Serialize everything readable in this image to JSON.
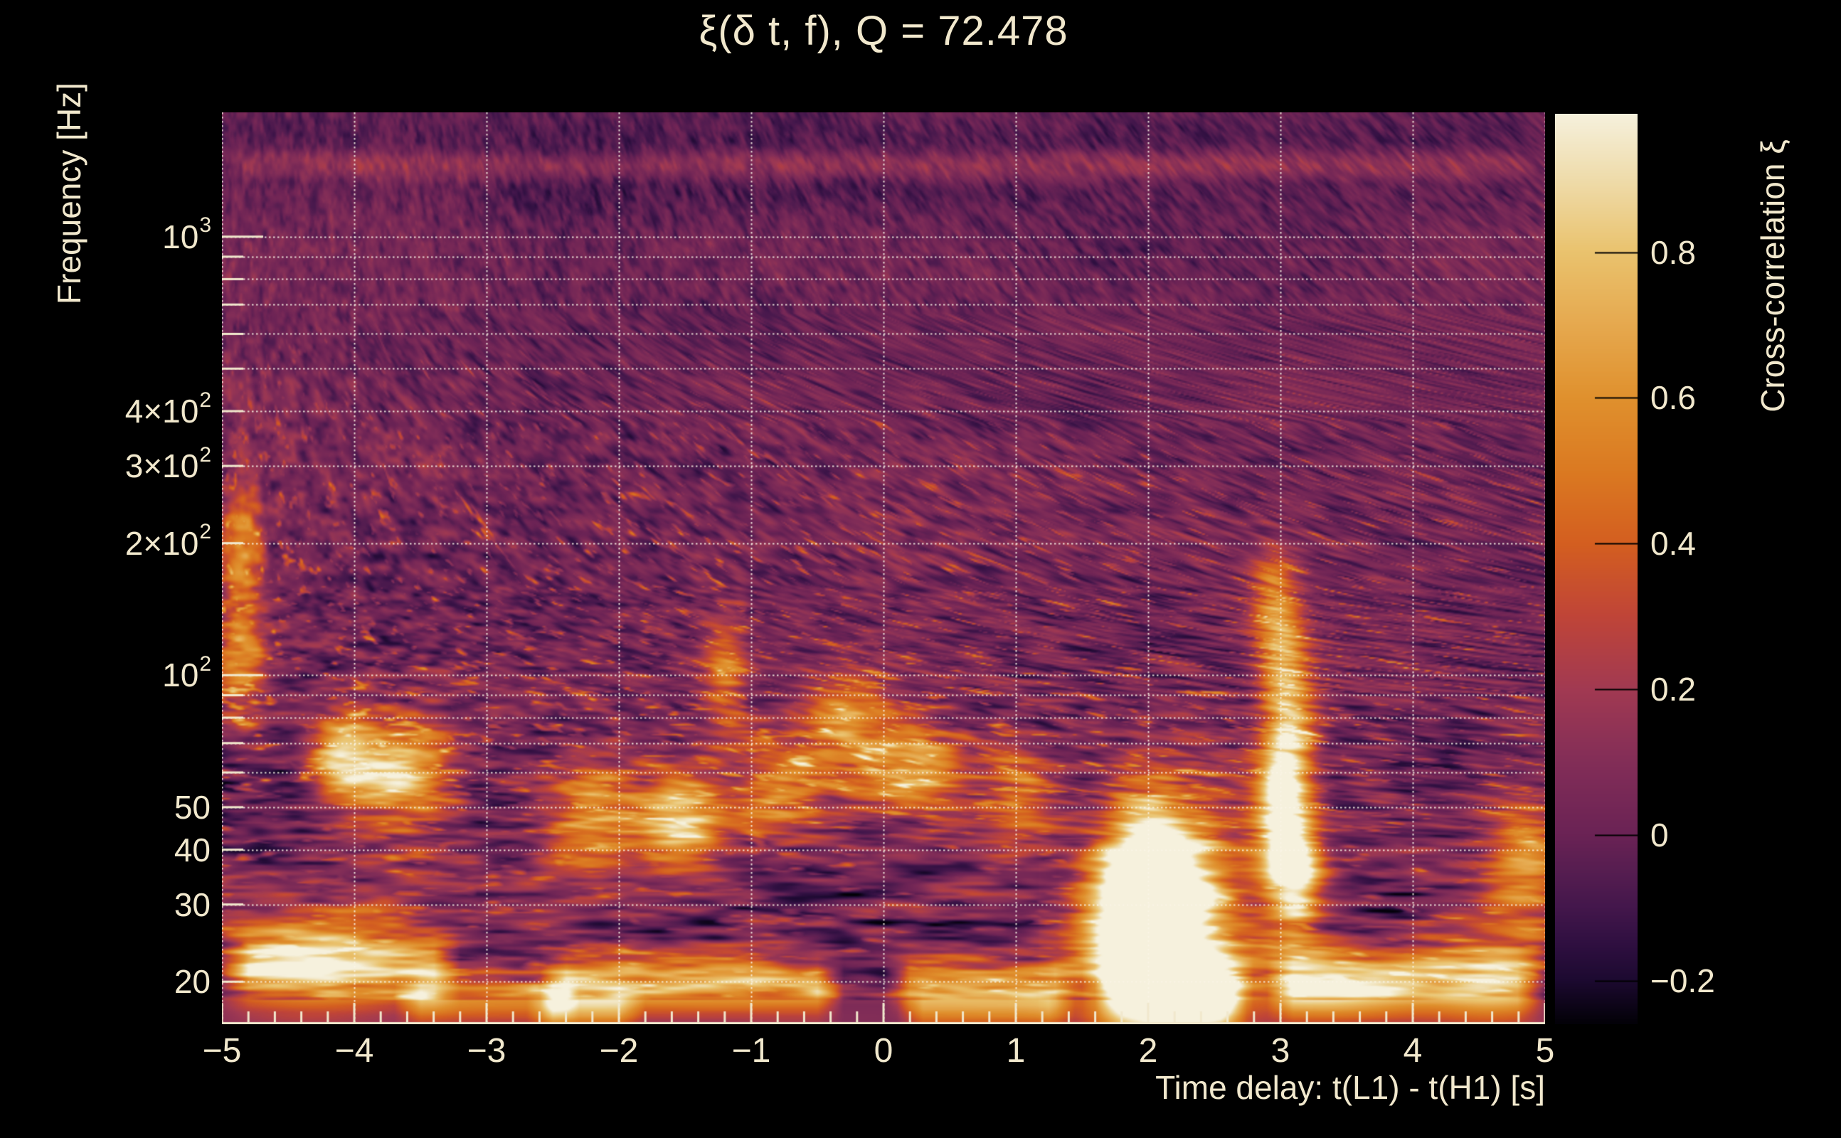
{
  "chart_data": {
    "type": "heatmap",
    "title": "ξ(δ t, f), Q = 72.478",
    "q_value": 72.478,
    "xlabel": "Time delay: t(L1) - t(H1) [s]",
    "ylabel": "Frequency [Hz]",
    "colorbar_label": "Cross-correlation ξ",
    "x_range": [
      -5,
      5
    ],
    "x_ticks": [
      -5,
      -4,
      -3,
      -2,
      -1,
      0,
      1,
      2,
      3,
      4,
      5
    ],
    "x_minor_step": 0.2,
    "y_scale": "log",
    "y_range_hz": [
      16,
      1920
    ],
    "y_ticks": [
      {
        "f": 1000,
        "label": "10",
        "sup": "3"
      },
      {
        "f": 400,
        "label": "4×10",
        "sup": "2"
      },
      {
        "f": 300,
        "label": "3×10",
        "sup": "2"
      },
      {
        "f": 200,
        "label": "2×10",
        "sup": "2"
      },
      {
        "f": 100,
        "label": "10",
        "sup": "2"
      },
      {
        "f": 50,
        "label": "50"
      },
      {
        "f": 40,
        "label": "40"
      },
      {
        "f": 30,
        "label": "30"
      },
      {
        "f": 20,
        "label": "20"
      }
    ],
    "y_minor_ticks_hz": [
      20,
      30,
      40,
      50,
      60,
      70,
      80,
      90,
      200,
      300,
      400,
      500,
      600,
      700,
      800,
      900
    ],
    "y_major_ticks_hz": [
      100,
      1000
    ],
    "grid_freqs_hz": [
      20,
      30,
      40,
      50,
      60,
      70,
      80,
      90,
      100,
      200,
      300,
      400,
      500,
      600,
      700,
      800,
      900,
      1000
    ],
    "grid_times_s": [
      -5,
      -4,
      -3,
      -2,
      -1,
      0,
      1,
      2,
      3,
      4,
      5
    ],
    "colorbar": {
      "min": -0.26,
      "max": 0.99,
      "ticks": [
        0.8,
        0.6,
        0.4,
        0.2,
        0,
        -0.2
      ]
    },
    "colormap_name": "magma-like",
    "colormap_stops": [
      [
        -0.26,
        "#030108"
      ],
      [
        -0.2,
        "#1d0a31"
      ],
      [
        -0.15,
        "#301041"
      ],
      [
        -0.1,
        "#44174c"
      ],
      [
        -0.05,
        "#571e51"
      ],
      [
        0.0,
        "#6b2355"
      ],
      [
        0.1,
        "#832e58"
      ],
      [
        0.2,
        "#a23a52"
      ],
      [
        0.3,
        "#c04538"
      ],
      [
        0.4,
        "#d45f20"
      ],
      [
        0.5,
        "#db7a22"
      ],
      [
        0.6,
        "#e0912e"
      ],
      [
        0.7,
        "#e6a94f"
      ],
      [
        0.8,
        "#eac36e"
      ],
      [
        0.9,
        "#efdcab"
      ],
      [
        0.99,
        "#f6f1dd"
      ]
    ],
    "text_color": "#f1e8cd",
    "flat_band_top_hz": 18.1,
    "flat_band_value": 0.09,
    "hotspots": [
      {
        "t": 2.07,
        "f": 26,
        "dt": 0.3,
        "dlogf": 0.17,
        "xi": 1.15
      },
      {
        "t": 1.98,
        "f": 35,
        "dt": 0.22,
        "dlogf": 0.12,
        "xi": 0.8
      },
      {
        "t": 2.35,
        "f": 29,
        "dt": 0.3,
        "dlogf": 0.22,
        "xi": 0.45
      },
      {
        "t": 1.7,
        "f": 24,
        "dt": 0.25,
        "dlogf": 0.12,
        "xi": 0.5
      },
      {
        "t": 3.05,
        "f": 42,
        "dt": 0.16,
        "dlogf": 0.1,
        "xi": 0.85
      },
      {
        "t": 3.12,
        "f": 33,
        "dt": 0.14,
        "dlogf": 0.09,
        "xi": 0.7
      },
      {
        "t": 3.0,
        "f": 56,
        "dt": 0.12,
        "dlogf": 0.09,
        "xi": 0.6
      },
      {
        "t": 3.1,
        "f": 76,
        "dt": 0.13,
        "dlogf": 0.1,
        "xi": 0.55
      },
      {
        "t": 3.02,
        "f": 108,
        "dt": 0.13,
        "dlogf": 0.09,
        "xi": 0.5
      },
      {
        "t": 2.95,
        "f": 150,
        "dt": 0.12,
        "dlogf": 0.08,
        "xi": 0.4
      },
      {
        "t": -1.5,
        "f": 46,
        "dt": 0.22,
        "dlogf": 0.09,
        "xi": 0.8
      },
      {
        "t": -3.7,
        "f": 60,
        "dt": 0.28,
        "dlogf": 0.08,
        "xi": 0.85
      },
      {
        "t": -4.1,
        "f": 66,
        "dt": 0.15,
        "dlogf": 0.07,
        "xi": 0.7
      },
      {
        "t": -2.2,
        "f": 48,
        "dt": 0.28,
        "dlogf": 0.1,
        "xi": 0.65
      },
      {
        "t": -4.85,
        "f": 110,
        "dt": 0.12,
        "dlogf": 0.1,
        "xi": 0.6
      },
      {
        "t": -4.85,
        "f": 200,
        "dt": 0.1,
        "dlogf": 0.09,
        "xi": 0.55
      },
      {
        "t": -4.3,
        "f": 23,
        "dt": 0.5,
        "dlogf": 0.09,
        "xi": 0.5
      },
      {
        "t": -0.75,
        "f": 57,
        "dt": 0.25,
        "dlogf": 0.08,
        "xi": 0.55
      },
      {
        "t": 0.2,
        "f": 62,
        "dt": 0.28,
        "dlogf": 0.07,
        "xi": 0.7
      },
      {
        "t": -0.3,
        "f": 80,
        "dt": 0.2,
        "dlogf": 0.07,
        "xi": 0.5
      },
      {
        "t": 1.05,
        "f": 52,
        "dt": 0.2,
        "dlogf": 0.08,
        "xi": 0.5
      },
      {
        "t": -1.2,
        "f": 103,
        "dt": 0.12,
        "dlogf": 0.09,
        "xi": 0.5
      },
      {
        "t": 4.85,
        "f": 38,
        "dt": 0.22,
        "dlogf": 0.1,
        "xi": 0.65
      },
      {
        "t": 4.6,
        "f": 23,
        "dt": 0.3,
        "dlogf": 0.1,
        "xi": 0.45
      },
      {
        "t": 3.3,
        "f": 20,
        "dt": 0.5,
        "dlogf": 0.06,
        "xi": 0.5
      }
    ],
    "line_artifacts": [
      {
        "f": 19.6,
        "t0": -2.6,
        "t1": -0.3,
        "xi": 0.7,
        "dlogf": 0.045
      },
      {
        "f": 19.8,
        "t0": 0.0,
        "t1": 1.5,
        "xi": 0.55,
        "dlogf": 0.04
      },
      {
        "f": 19.3,
        "t0": 1.6,
        "t1": 2.8,
        "xi": 0.6,
        "dlogf": 0.045
      },
      {
        "f": 19.5,
        "t0": 2.9,
        "t1": 5.0,
        "xi": 0.6,
        "dlogf": 0.045
      },
      {
        "f": 21.5,
        "t0": -5.0,
        "t1": -3.2,
        "xi": 0.55,
        "dlogf": 0.05
      },
      {
        "f": 18.4,
        "t0": -3.7,
        "t1": -2.3,
        "xi": 0.5,
        "dlogf": 0.04
      },
      {
        "f": 17.3,
        "t0": -2.7,
        "t1": -1.8,
        "xi": 0.4,
        "dlogf": 0.035
      },
      {
        "f": 17.3,
        "t0": 0.1,
        "t1": 1.45,
        "xi": 0.4,
        "dlogf": 0.035
      },
      {
        "f": 17.3,
        "t0": 2.05,
        "t1": 2.75,
        "xi": 0.4,
        "dlogf": 0.035
      },
      {
        "f": 1500,
        "t0": -5.0,
        "t1": 5.0,
        "xi": 0.16,
        "dlogf": 0.018
      },
      {
        "f": 1408,
        "t0": -5.0,
        "t1": 5.0,
        "xi": 0.13,
        "dlogf": 0.018
      },
      {
        "f": 1455,
        "t0": -5.0,
        "t1": 5.0,
        "xi": -0.1,
        "dlogf": 0.08
      }
    ]
  }
}
